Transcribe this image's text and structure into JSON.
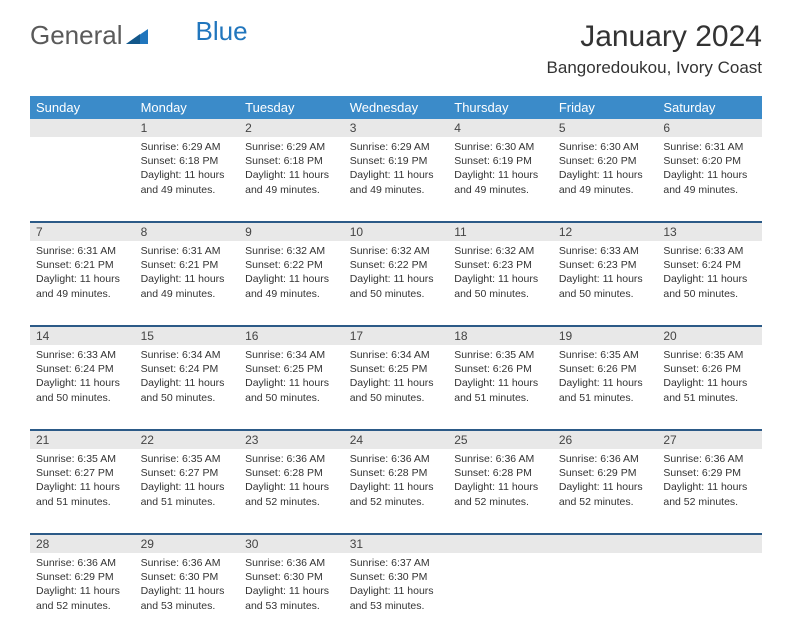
{
  "logo": {
    "text1": "General",
    "text2": "Blue"
  },
  "title": "January 2024",
  "location": "Bangoredoukou, Ivory Coast",
  "weekdays": [
    "Sunday",
    "Monday",
    "Tuesday",
    "Wednesday",
    "Thursday",
    "Friday",
    "Saturday"
  ],
  "colors": {
    "header_bg": "#3b8bc9",
    "header_text": "#ffffff",
    "daynum_bg": "#e8e8e8",
    "row_border": "#2c5a87",
    "logo_blue": "#2176bd",
    "logo_gray": "#5a5a5a"
  },
  "weeks": [
    {
      "nums": [
        "",
        "1",
        "2",
        "3",
        "4",
        "5",
        "6"
      ],
      "cells": [
        null,
        {
          "sunrise": "Sunrise: 6:29 AM",
          "sunset": "Sunset: 6:18 PM",
          "daylight": "Daylight: 11 hours and 49 minutes."
        },
        {
          "sunrise": "Sunrise: 6:29 AM",
          "sunset": "Sunset: 6:18 PM",
          "daylight": "Daylight: 11 hours and 49 minutes."
        },
        {
          "sunrise": "Sunrise: 6:29 AM",
          "sunset": "Sunset: 6:19 PM",
          "daylight": "Daylight: 11 hours and 49 minutes."
        },
        {
          "sunrise": "Sunrise: 6:30 AM",
          "sunset": "Sunset: 6:19 PM",
          "daylight": "Daylight: 11 hours and 49 minutes."
        },
        {
          "sunrise": "Sunrise: 6:30 AM",
          "sunset": "Sunset: 6:20 PM",
          "daylight": "Daylight: 11 hours and 49 minutes."
        },
        {
          "sunrise": "Sunrise: 6:31 AM",
          "sunset": "Sunset: 6:20 PM",
          "daylight": "Daylight: 11 hours and 49 minutes."
        }
      ]
    },
    {
      "nums": [
        "7",
        "8",
        "9",
        "10",
        "11",
        "12",
        "13"
      ],
      "cells": [
        {
          "sunrise": "Sunrise: 6:31 AM",
          "sunset": "Sunset: 6:21 PM",
          "daylight": "Daylight: 11 hours and 49 minutes."
        },
        {
          "sunrise": "Sunrise: 6:31 AM",
          "sunset": "Sunset: 6:21 PM",
          "daylight": "Daylight: 11 hours and 49 minutes."
        },
        {
          "sunrise": "Sunrise: 6:32 AM",
          "sunset": "Sunset: 6:22 PM",
          "daylight": "Daylight: 11 hours and 49 minutes."
        },
        {
          "sunrise": "Sunrise: 6:32 AM",
          "sunset": "Sunset: 6:22 PM",
          "daylight": "Daylight: 11 hours and 50 minutes."
        },
        {
          "sunrise": "Sunrise: 6:32 AM",
          "sunset": "Sunset: 6:23 PM",
          "daylight": "Daylight: 11 hours and 50 minutes."
        },
        {
          "sunrise": "Sunrise: 6:33 AM",
          "sunset": "Sunset: 6:23 PM",
          "daylight": "Daylight: 11 hours and 50 minutes."
        },
        {
          "sunrise": "Sunrise: 6:33 AM",
          "sunset": "Sunset: 6:24 PM",
          "daylight": "Daylight: 11 hours and 50 minutes."
        }
      ]
    },
    {
      "nums": [
        "14",
        "15",
        "16",
        "17",
        "18",
        "19",
        "20"
      ],
      "cells": [
        {
          "sunrise": "Sunrise: 6:33 AM",
          "sunset": "Sunset: 6:24 PM",
          "daylight": "Daylight: 11 hours and 50 minutes."
        },
        {
          "sunrise": "Sunrise: 6:34 AM",
          "sunset": "Sunset: 6:24 PM",
          "daylight": "Daylight: 11 hours and 50 minutes."
        },
        {
          "sunrise": "Sunrise: 6:34 AM",
          "sunset": "Sunset: 6:25 PM",
          "daylight": "Daylight: 11 hours and 50 minutes."
        },
        {
          "sunrise": "Sunrise: 6:34 AM",
          "sunset": "Sunset: 6:25 PM",
          "daylight": "Daylight: 11 hours and 50 minutes."
        },
        {
          "sunrise": "Sunrise: 6:35 AM",
          "sunset": "Sunset: 6:26 PM",
          "daylight": "Daylight: 11 hours and 51 minutes."
        },
        {
          "sunrise": "Sunrise: 6:35 AM",
          "sunset": "Sunset: 6:26 PM",
          "daylight": "Daylight: 11 hours and 51 minutes."
        },
        {
          "sunrise": "Sunrise: 6:35 AM",
          "sunset": "Sunset: 6:26 PM",
          "daylight": "Daylight: 11 hours and 51 minutes."
        }
      ]
    },
    {
      "nums": [
        "21",
        "22",
        "23",
        "24",
        "25",
        "26",
        "27"
      ],
      "cells": [
        {
          "sunrise": "Sunrise: 6:35 AM",
          "sunset": "Sunset: 6:27 PM",
          "daylight": "Daylight: 11 hours and 51 minutes."
        },
        {
          "sunrise": "Sunrise: 6:35 AM",
          "sunset": "Sunset: 6:27 PM",
          "daylight": "Daylight: 11 hours and 51 minutes."
        },
        {
          "sunrise": "Sunrise: 6:36 AM",
          "sunset": "Sunset: 6:28 PM",
          "daylight": "Daylight: 11 hours and 52 minutes."
        },
        {
          "sunrise": "Sunrise: 6:36 AM",
          "sunset": "Sunset: 6:28 PM",
          "daylight": "Daylight: 11 hours and 52 minutes."
        },
        {
          "sunrise": "Sunrise: 6:36 AM",
          "sunset": "Sunset: 6:28 PM",
          "daylight": "Daylight: 11 hours and 52 minutes."
        },
        {
          "sunrise": "Sunrise: 6:36 AM",
          "sunset": "Sunset: 6:29 PM",
          "daylight": "Daylight: 11 hours and 52 minutes."
        },
        {
          "sunrise": "Sunrise: 6:36 AM",
          "sunset": "Sunset: 6:29 PM",
          "daylight": "Daylight: 11 hours and 52 minutes."
        }
      ]
    },
    {
      "nums": [
        "28",
        "29",
        "30",
        "31",
        "",
        "",
        ""
      ],
      "cells": [
        {
          "sunrise": "Sunrise: 6:36 AM",
          "sunset": "Sunset: 6:29 PM",
          "daylight": "Daylight: 11 hours and 52 minutes."
        },
        {
          "sunrise": "Sunrise: 6:36 AM",
          "sunset": "Sunset: 6:30 PM",
          "daylight": "Daylight: 11 hours and 53 minutes."
        },
        {
          "sunrise": "Sunrise: 6:36 AM",
          "sunset": "Sunset: 6:30 PM",
          "daylight": "Daylight: 11 hours and 53 minutes."
        },
        {
          "sunrise": "Sunrise: 6:37 AM",
          "sunset": "Sunset: 6:30 PM",
          "daylight": "Daylight: 11 hours and 53 minutes."
        },
        null,
        null,
        null
      ]
    }
  ]
}
